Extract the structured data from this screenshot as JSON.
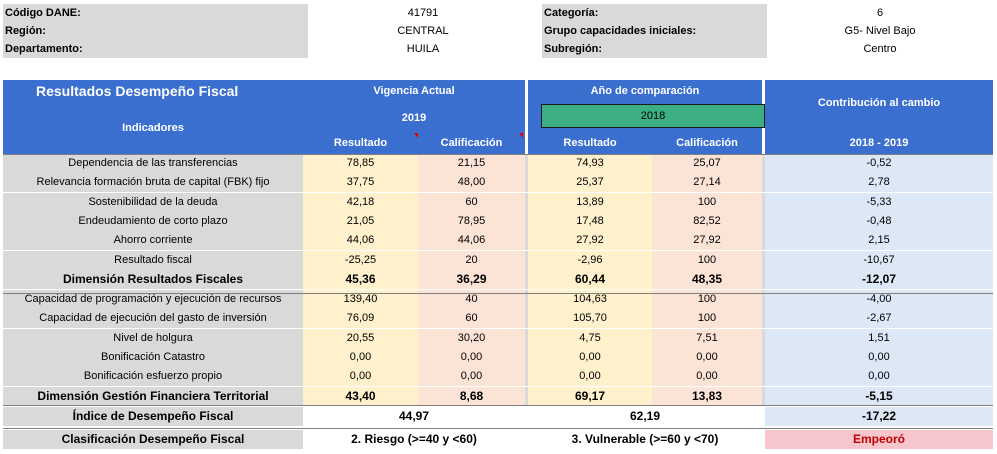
{
  "info": {
    "left": [
      {
        "label": "Código DANE:",
        "value": "41791"
      },
      {
        "label": "Región:",
        "value": "CENTRAL"
      },
      {
        "label": "Departamento:",
        "value": "HUILA"
      }
    ],
    "right": [
      {
        "label": "Categoría:",
        "value": "6"
      },
      {
        "label": "Grupo capacidades iniciales:",
        "value": "G5- Nivel Bajo"
      },
      {
        "label": "Subregión:",
        "value": "Centro"
      }
    ]
  },
  "header": {
    "title": "Resultados Desempeño Fiscal",
    "indicadores": "Indicadores",
    "vigencia": "Vigencia Actual",
    "vigencia_year": "2019",
    "comparacion": "Año de comparación",
    "comparacion_year": "2018",
    "contribucion": "Contribución al cambio",
    "contribucion_period": "2018 - 2019",
    "resultado": "Resultado",
    "calificacion": "Calificación"
  },
  "colors": {
    "header_blue": "#3a6fcf",
    "year_box_green": "#3cae84",
    "resultado_bg": "#fef1cc",
    "calificacion_bg": "#fbe3d6",
    "contribucion_bg": "#dde8f7",
    "empeoro_bg": "#f7c6cc",
    "empeoro_text": "#c00000"
  },
  "rows": [
    {
      "name": "Dependencia de las transferencias",
      "r1": "78,85",
      "c1": "21,15",
      "r2": "74,93",
      "c2": "25,07",
      "con": "-0,52"
    },
    {
      "name": "Relevancia formación bruta de capital (FBK) fijo",
      "r1": "37,75",
      "c1": "48,00",
      "r2": "25,37",
      "c2": "27,14",
      "con": "2,78"
    },
    {
      "name": "Sostenibilidad de la deuda",
      "r1": "42,18",
      "c1": "60",
      "r2": "13,89",
      "c2": "100",
      "con": "-5,33"
    },
    {
      "name": "Endeudamiento de corto plazo",
      "r1": "21,05",
      "c1": "78,95",
      "r2": "17,48",
      "c2": "82,52",
      "con": "-0,48"
    },
    {
      "name": "Ahorro corriente",
      "r1": "44,06",
      "c1": "44,06",
      "r2": "27,92",
      "c2": "27,92",
      "con": "2,15"
    },
    {
      "name": "Resultado fiscal",
      "r1": "-25,25",
      "c1": "20",
      "r2": "-2,96",
      "c2": "100",
      "con": "-10,67"
    },
    {
      "name": "Dimensión Resultados Fiscales",
      "r1": "45,36",
      "c1": "36,29",
      "r2": "60,44",
      "c2": "48,35",
      "con": "-12,07",
      "bold": true
    },
    {
      "name": "Capacidad de programación y ejecución de recursos",
      "r1": "139,40",
      "c1": "40",
      "r2": "104,63",
      "c2": "100",
      "con": "-4,00"
    },
    {
      "name": "Capacidad de ejecución del gasto de inversión",
      "r1": "76,09",
      "c1": "60",
      "r2": "105,70",
      "c2": "100",
      "con": "-2,67"
    },
    {
      "name": "Nivel de holgura",
      "r1": "20,55",
      "c1": "30,20",
      "r2": "4,75",
      "c2": "7,51",
      "con": "1,51"
    },
    {
      "name": "Bonificación Catastro",
      "r1": "0,00",
      "c1": "0,00",
      "r2": "0,00",
      "c2": "0,00",
      "con": "0,00"
    },
    {
      "name": "Bonificación esfuerzo propio",
      "r1": "0,00",
      "c1": "0,00",
      "r2": "0,00",
      "c2": "0,00",
      "con": "0,00"
    },
    {
      "name": "Dimensión Gestión Financiera Territorial",
      "r1": "43,40",
      "c1": "8,68",
      "r2": "69,17",
      "c2": "13,83",
      "con": "-5,15",
      "bold": true
    }
  ],
  "indice": {
    "name": "Índice de Desempeño Fiscal",
    "v1": "44,97",
    "v2": "62,19",
    "con": "-17,22"
  },
  "clasificacion": {
    "name": "Clasificación Desempeño Fiscal",
    "v1": "2. Riesgo (>=40 y <60)",
    "v2": "3. Vulnerable (>=60 y <70)",
    "con": "Empeoró"
  }
}
